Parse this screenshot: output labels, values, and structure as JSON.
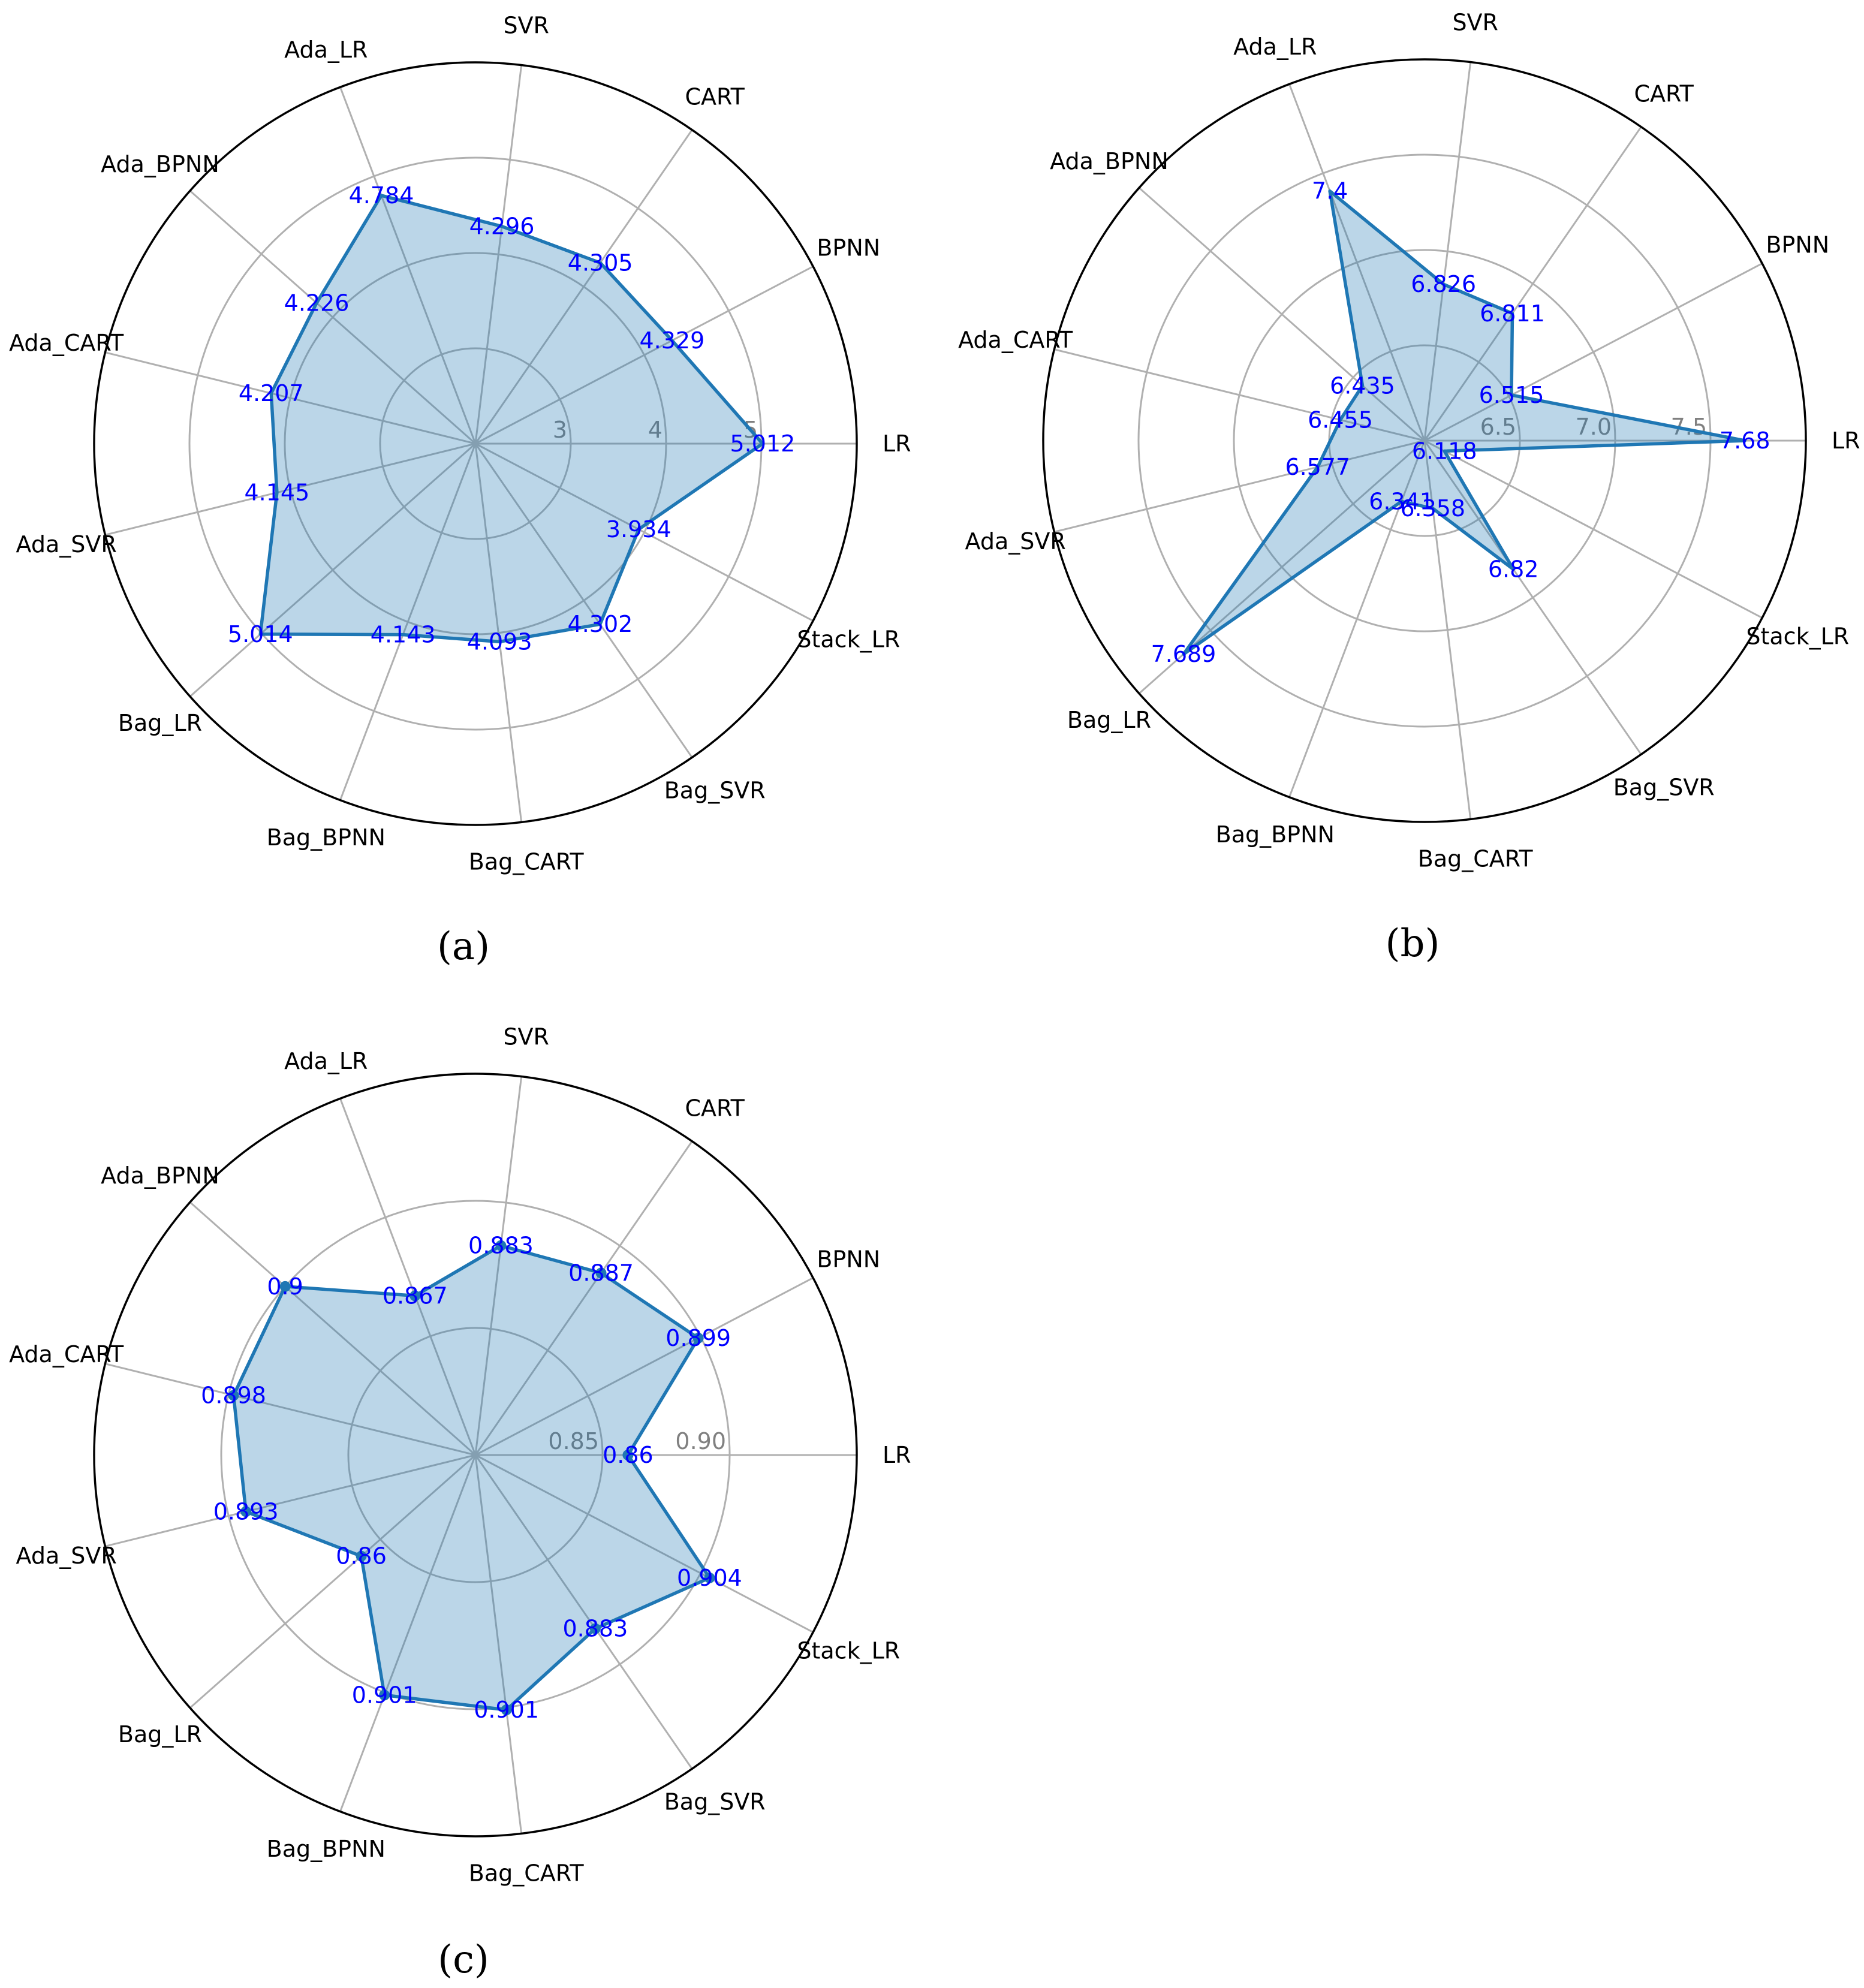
{
  "colors": {
    "line": "#1f77b4",
    "fill": "#1f77b4",
    "data_label": "#0000ff",
    "grid": "#b0b0b0",
    "tick_label": "#808080",
    "outer_circle": "#000000"
  },
  "chart_data": [
    {
      "type": "radar",
      "caption": "(a)",
      "categories": [
        "LR",
        "BPNN",
        "CART",
        "SVR",
        "Ada_LR",
        "Ada_BPNN",
        "Ada_CART",
        "Ada_SVR",
        "Bag_LR",
        "Bag_BPNN",
        "Bag_CART",
        "Bag_SVR",
        "Stack_LR"
      ],
      "values": [
        5.012,
        4.329,
        4.305,
        4.296,
        4.784,
        4.226,
        4.207,
        4.145,
        5.014,
        4.143,
        4.093,
        4.302,
        3.934
      ],
      "value_labels": [
        "5.012",
        "4.329",
        "4.305",
        "4.296",
        "4.784",
        "4.226",
        "4.207",
        "4.145",
        "5.014",
        "4.143",
        "4.093",
        "4.302",
        "3.934"
      ],
      "rlim": [
        2,
        6
      ],
      "rticks": [
        3,
        4,
        5
      ],
      "rtick_labels": [
        "3",
        "4",
        "5"
      ],
      "markers": false,
      "grid": true
    },
    {
      "type": "radar",
      "caption": "(b)",
      "categories": [
        "LR",
        "BPNN",
        "CART",
        "SVR",
        "Ada_LR",
        "Ada_BPNN",
        "Ada_CART",
        "Ada_SVR",
        "Bag_LR",
        "Bag_BPNN",
        "Bag_CART",
        "Bag_SVR",
        "Stack_LR"
      ],
      "values": [
        7.68,
        6.515,
        6.811,
        6.826,
        7.4,
        6.435,
        6.455,
        6.577,
        7.689,
        6.341,
        6.358,
        6.82,
        6.118
      ],
      "value_labels": [
        "7.68",
        "6.515",
        "6.811",
        "6.826",
        "7.4",
        "6.435",
        "6.455",
        "6.577",
        "7.689",
        "6.341",
        "6.358",
        "6.82",
        "6.118"
      ],
      "rlim": [
        6.0,
        8.0
      ],
      "rticks": [
        6.5,
        7.0,
        7.5
      ],
      "rtick_labels": [
        "6.5",
        "7.0",
        "7.5"
      ],
      "markers": false,
      "grid": true
    },
    {
      "type": "radar",
      "caption": "(c)",
      "categories": [
        "LR",
        "BPNN",
        "CART",
        "SVR",
        "Ada_LR",
        "Ada_BPNN",
        "Ada_CART",
        "Ada_SVR",
        "Bag_LR",
        "Bag_BPNN",
        "Bag_CART",
        "Bag_SVR",
        "Stack_LR"
      ],
      "values": [
        0.86,
        0.899,
        0.887,
        0.883,
        0.867,
        0.9,
        0.898,
        0.893,
        0.86,
        0.901,
        0.901,
        0.883,
        0.904
      ],
      "value_labels": [
        "0.86",
        "0.899",
        "0.887",
        "0.883",
        "0.867",
        "0.9",
        "0.898",
        "0.893",
        "0.86",
        "0.901",
        "0.901",
        "0.883",
        "0.904"
      ],
      "rlim": [
        0.8,
        0.95
      ],
      "rticks": [
        0.85,
        0.9
      ],
      "rtick_labels": [
        "0.85",
        "0.90"
      ],
      "markers": true,
      "grid": true
    }
  ]
}
